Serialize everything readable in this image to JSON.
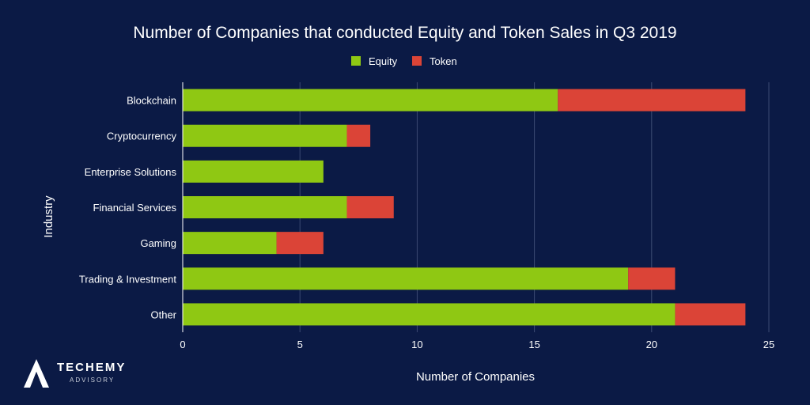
{
  "chart_data": {
    "type": "bar",
    "orientation": "horizontal",
    "stacked": true,
    "title": "Number of Companies that conducted Equity and Token Sales in Q3 2019",
    "xlabel": "Number of Companies",
    "ylabel": "Industry",
    "xlim": [
      0,
      25
    ],
    "xticks": [
      0,
      5,
      10,
      15,
      20,
      25
    ],
    "grid": true,
    "legend_position": "top-center",
    "categories": [
      "Blockchain",
      "Cryptocurrency",
      "Enterprise Solutions",
      "Financial Services",
      "Gaming",
      "Trading & Investment",
      "Other"
    ],
    "series": [
      {
        "name": "Equity",
        "color": "#8fc813",
        "values": [
          16,
          7,
          6,
          7,
          4,
          19,
          21
        ]
      },
      {
        "name": "Token",
        "color": "#db4437",
        "values": [
          8,
          1,
          0,
          2,
          2,
          2,
          3
        ]
      }
    ]
  },
  "branding": {
    "logo_icon": "techemy-a-logo-icon",
    "name": "TECHEMY",
    "subtitle": "ADVISORY"
  },
  "colors": {
    "background": "#0b1a45",
    "grid": "#3b4a72"
  }
}
